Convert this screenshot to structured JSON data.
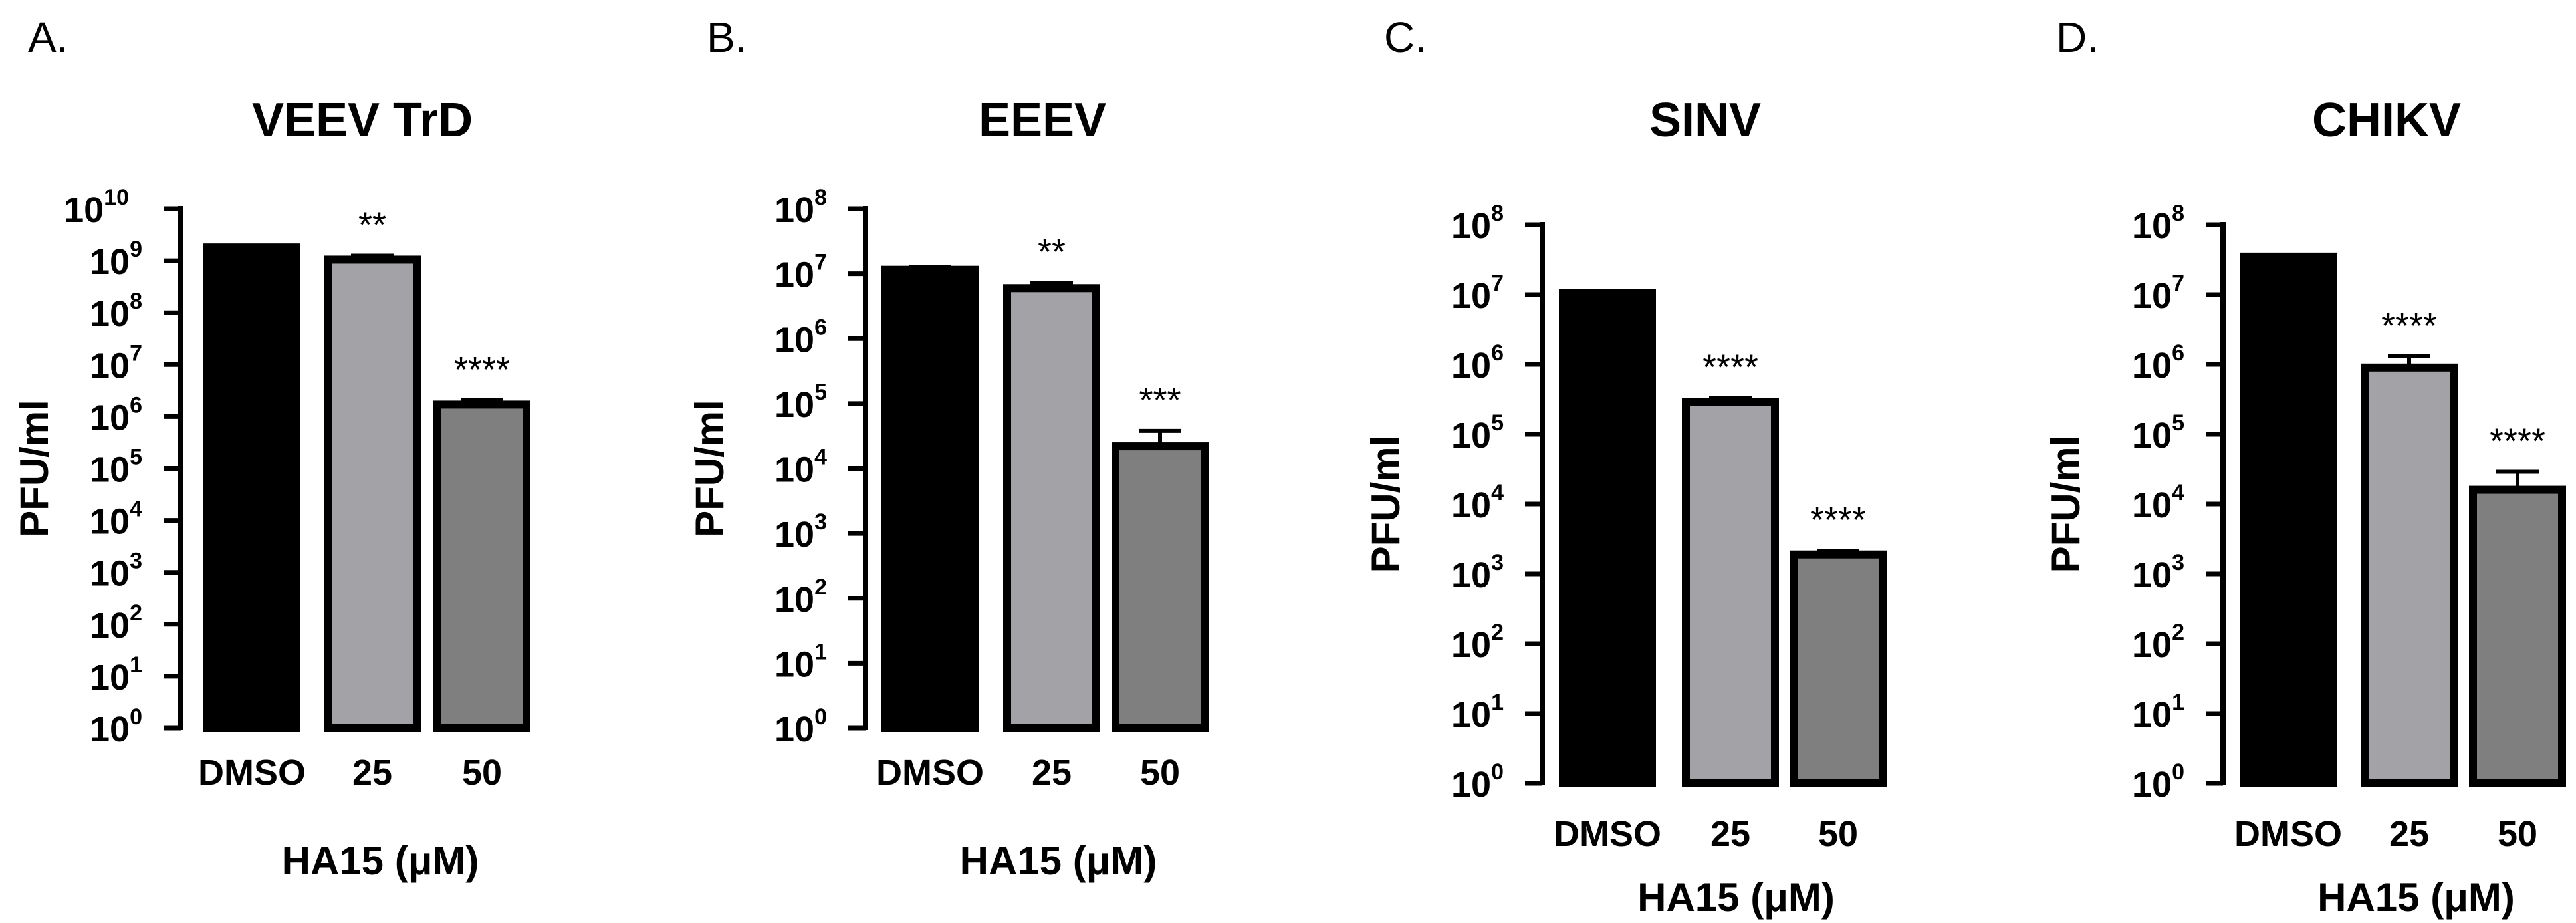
{
  "figure": {
    "x_axis_label": "HA15 (μM)",
    "y_axis_label": "PFU/ml",
    "y_scale": "log10",
    "bar_colors": [
      "#000000",
      "#a3a3a7",
      "#7f7f7f"
    ],
    "bar_outline_color": "#000000"
  },
  "chart_data": [
    {
      "type": "bar",
      "panel_letter": "A.",
      "title": "VEEV TrD",
      "xlabel": "HA15 (μM)",
      "ylabel": "PFU/ml",
      "categories": [
        "DMSO",
        "25",
        "50"
      ],
      "values": [
        1800000000,
        1050000000,
        1700000
      ],
      "error_upper": [
        1950000000,
        1250000000,
        2050000
      ],
      "significance": [
        "",
        "**",
        "****"
      ],
      "ylim": [
        1,
        10000000000
      ],
      "y_tick_exponents": [
        0,
        1,
        2,
        3,
        4,
        5,
        6,
        7,
        8,
        9,
        10
      ]
    },
    {
      "type": "bar",
      "panel_letter": "B.",
      "title": "EEEV",
      "xlabel": "HA15 (μM)",
      "ylabel": "PFU/ml",
      "categories": [
        "DMSO",
        "25",
        "50"
      ],
      "values": [
        11500000,
        6000000,
        22000
      ],
      "error_upper": [
        12800000,
        7300000,
        38000
      ],
      "significance": [
        "",
        "**",
        "***"
      ],
      "ylim": [
        1,
        100000000
      ],
      "y_tick_exponents": [
        0,
        1,
        2,
        3,
        4,
        5,
        6,
        7,
        8
      ]
    },
    {
      "type": "bar",
      "panel_letter": "C.",
      "title": "SINV",
      "xlabel": "HA15 (μM)",
      "ylabel": "PFU/ml",
      "categories": [
        "DMSO",
        "25",
        "50"
      ],
      "values": [
        10500000,
        290000,
        1900
      ],
      "error_upper": [
        11200000,
        330000,
        2150
      ],
      "significance": [
        "",
        "****",
        "****"
      ],
      "ylim": [
        1,
        100000000
      ],
      "y_tick_exponents": [
        0,
        1,
        2,
        3,
        4,
        5,
        6,
        7,
        8
      ]
    },
    {
      "type": "bar",
      "panel_letter": "D.",
      "title": "CHIKV",
      "xlabel": "HA15 (μM)",
      "ylabel": "PFU/ml",
      "categories": [
        "DMSO",
        "25",
        "50"
      ],
      "values": [
        35000000,
        900000,
        16000
      ],
      "error_upper": [
        36500000,
        1300000,
        29000
      ],
      "significance": [
        "",
        "****",
        "****"
      ],
      "ylim": [
        1,
        100000000
      ],
      "y_tick_exponents": [
        0,
        1,
        2,
        3,
        4,
        5,
        6,
        7,
        8
      ]
    }
  ]
}
